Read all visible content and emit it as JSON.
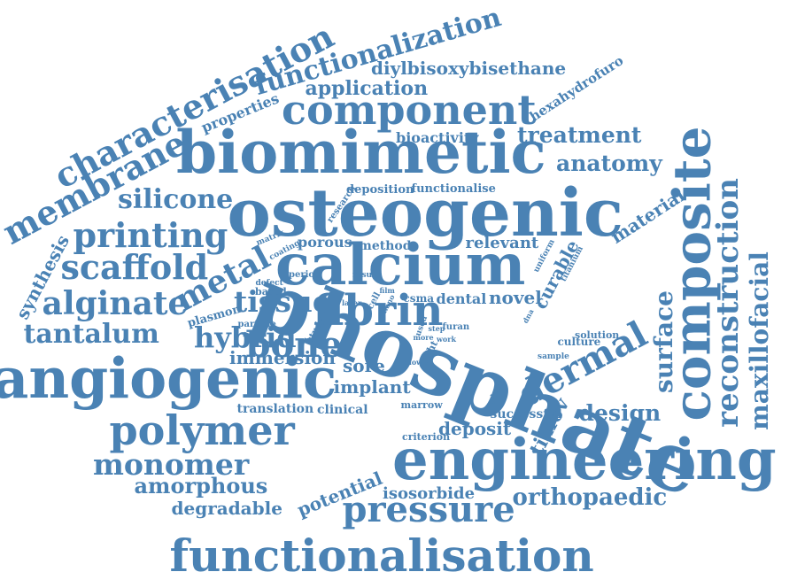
{
  "style": {
    "word_color": "#4a82b4",
    "background": "#ffffff"
  },
  "words": [
    "phosphate",
    "engineering",
    "osteogenic",
    "biomimetic",
    "angiogenic",
    "calcium",
    "composite",
    "functionalisation",
    "component",
    "fibrin",
    "polymer",
    "reconstruction",
    "dermal",
    "pressure",
    "characterisation",
    "membrane",
    "printing",
    "scaffold",
    "alginate",
    "monomer",
    "functionalization",
    "metal",
    "tissue",
    "bone",
    "silicone",
    "hybrid",
    "tantalum",
    "maxillofacial",
    "surface",
    "orthopaedic",
    "treatment",
    "anatomy",
    "design",
    "amorphous",
    "diylbisoxybisethane",
    "application",
    "degradable",
    "immersion",
    "implant",
    "tial6v",
    "deposit",
    "isosorbide",
    "material",
    "potential",
    "sore",
    "synthesis",
    "novel",
    "curable",
    "properties",
    "hexahydrofuro",
    "bioactivity",
    "successful",
    "relevant",
    "porous",
    "deposition",
    "functionalise",
    "translation",
    "clinical",
    "method",
    "dental",
    "plasmon",
    "culture",
    "marrow",
    "criterion",
    "csma",
    "based",
    "particle",
    "research",
    "solution",
    "sample",
    "study",
    "light",
    "period",
    "defect",
    "coating",
    "matrix",
    "uniform",
    "titanium",
    "result",
    "layer",
    "furan",
    "phase",
    "used",
    "cell",
    "nano",
    "film",
    "dna",
    "show",
    "more",
    "work",
    "step"
  ]
}
